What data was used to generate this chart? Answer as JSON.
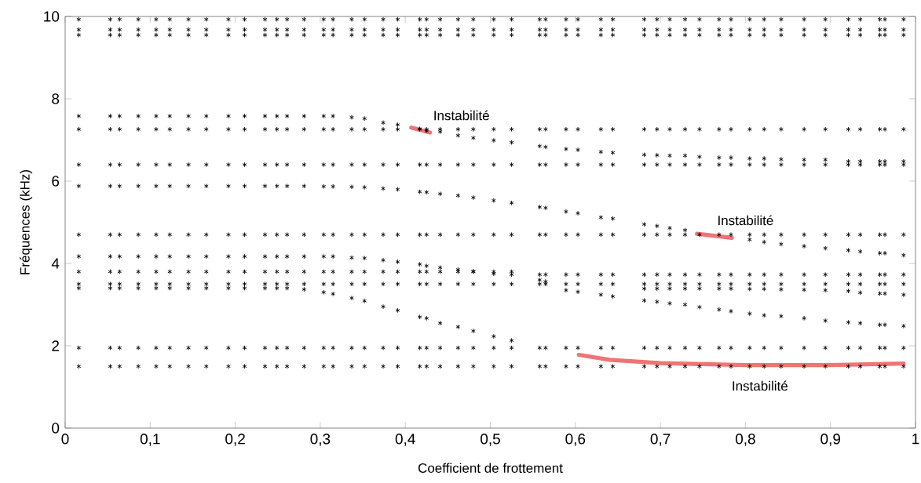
{
  "chart_data": {
    "type": "scatter",
    "xlabel": "Coefficient de frottement",
    "ylabel": "Fréquences (kHz)",
    "marker": "cross",
    "xlim": [
      0,
      1
    ],
    "ylim": [
      0,
      10
    ],
    "xticks": [
      0,
      {
        "value": 0.1,
        "label": "0,1"
      },
      {
        "value": 0.2,
        "label": "0,2"
      },
      {
        "value": 0.3,
        "label": "0,3"
      },
      {
        "value": 0.4,
        "label": "0,4"
      },
      {
        "value": 0.5,
        "label": "0,5"
      },
      {
        "value": 0.6,
        "label": "0,6"
      },
      {
        "value": 0.7,
        "label": "0,7"
      },
      {
        "value": 0.8,
        "label": "0,8"
      },
      {
        "value": 0.9,
        "label": "0,9"
      },
      1
    ],
    "yticks": [
      0,
      2,
      4,
      6,
      8,
      10
    ],
    "x": [
      0.016,
      0.053,
      0.064,
      0.086,
      0.107,
      0.123,
      0.145,
      0.166,
      0.192,
      0.211,
      0.235,
      0.249,
      0.261,
      0.281,
      0.304,
      0.315,
      0.337,
      0.352,
      0.374,
      0.391,
      0.417,
      0.425,
      0.441,
      0.462,
      0.48,
      0.504,
      0.525,
      0.558,
      0.565,
      0.589,
      0.603,
      0.63,
      0.644,
      0.681,
      0.696,
      0.711,
      0.729,
      0.746,
      0.769,
      0.783,
      0.805,
      0.822,
      0.842,
      0.869,
      0.894,
      0.921,
      0.935,
      0.958,
      0.964,
      0.986
    ],
    "series": [
      {
        "type": "line",
        "marker": "none",
        "color": "#f07474",
        "x": [
          0.407,
          0.429
        ],
        "values": [
          7.3,
          7.18
        ]
      },
      {
        "type": "line",
        "marker": "none",
        "color": "#f07474",
        "x": [
          0.743,
          0.765,
          0.784
        ],
        "values": [
          4.72,
          4.67,
          4.62
        ]
      },
      {
        "type": "line",
        "marker": "none",
        "color": "#f07474",
        "x": [
          0.604,
          0.64,
          0.7,
          0.8,
          0.9,
          0.986
        ],
        "values": [
          1.78,
          1.66,
          1.58,
          1.53,
          1.53,
          1.57
        ]
      },
      {
        "color": "#000000",
        "values": [
          1.5,
          1.5,
          1.5,
          1.5,
          1.5,
          1.5,
          1.5,
          1.5,
          1.5,
          1.5,
          1.5,
          1.5,
          1.5,
          1.5,
          1.5,
          1.5,
          1.5,
          1.5,
          1.5,
          1.5,
          1.5,
          1.5,
          1.5,
          1.5,
          1.5,
          1.5,
          1.5,
          1.5,
          1.5,
          1.5,
          1.5,
          1.5,
          1.5,
          1.5,
          1.5,
          1.5,
          1.5,
          1.5,
          1.5,
          1.5,
          1.5,
          1.5,
          1.5,
          1.5,
          1.5,
          1.5,
          1.5,
          1.5,
          1.5,
          1.5
        ]
      },
      {
        "color": "#000000",
        "values": [
          1.95,
          1.95,
          1.95,
          1.95,
          1.95,
          1.95,
          1.95,
          1.95,
          1.95,
          1.95,
          1.95,
          1.95,
          1.95,
          1.95,
          1.95,
          1.95,
          1.95,
          1.95,
          1.95,
          1.95,
          1.95,
          1.95,
          1.95,
          1.95,
          1.95,
          1.95,
          1.95,
          1.95,
          1.95,
          1.95,
          1.95,
          1.95,
          1.95,
          1.95,
          1.95,
          1.95,
          1.95,
          1.95,
          1.95,
          1.95,
          1.95,
          1.95,
          1.95,
          1.95,
          1.95,
          1.95,
          1.95,
          1.95,
          1.95,
          1.95
        ]
      },
      {
        "color": "#000000",
        "values": [
          3.5,
          3.5,
          3.5,
          3.5,
          3.5,
          3.5,
          3.5,
          3.5,
          3.5,
          3.5,
          3.5,
          3.5,
          3.5,
          3.5,
          3.5,
          3.5,
          3.5,
          3.5,
          3.5,
          3.5,
          3.5,
          3.5,
          3.5,
          3.5,
          3.5,
          3.5,
          3.5,
          3.5,
          3.5,
          3.5,
          3.5,
          3.5,
          3.5,
          3.5,
          3.5,
          3.5,
          3.5,
          3.5,
          3.5,
          3.5,
          3.5,
          3.5,
          3.5,
          3.5,
          3.5,
          3.5,
          3.5,
          3.5,
          3.5,
          3.5
        ]
      },
      {
        "color": "#000000",
        "values": [
          3.8,
          3.8,
          3.8,
          3.8,
          3.8,
          3.8,
          3.8,
          3.8,
          3.8,
          3.8,
          3.8,
          3.8,
          3.8,
          3.8,
          3.8,
          3.8,
          3.8,
          3.8,
          3.8,
          3.8,
          3.8,
          3.8,
          3.8,
          3.8,
          3.8,
          3.8,
          3.8,
          3.73,
          3.73,
          3.73,
          3.73,
          3.73,
          3.73,
          3.73,
          3.73,
          3.73,
          3.73,
          3.73,
          3.73,
          3.73,
          3.73,
          3.73,
          3.73,
          3.73,
          3.73,
          3.73,
          3.73,
          3.73,
          3.73,
          3.73
        ]
      },
      {
        "color": "#000000",
        "values": [
          3.4,
          3.4,
          3.4,
          3.4,
          3.4,
          3.4,
          3.4,
          3.4,
          3.4,
          3.4,
          3.4,
          3.4,
          3.4,
          3.37,
          3.3,
          3.26,
          3.16,
          3.09,
          2.95,
          2.86,
          2.7,
          2.67,
          2.55,
          2.46,
          2.36,
          2.23,
          2.13,
          null,
          null,
          null,
          null,
          null,
          null,
          null,
          null,
          null,
          null,
          null,
          null,
          null,
          null,
          null,
          null,
          null,
          null,
          null,
          null,
          null,
          null,
          null
        ]
      },
      {
        "color": "#000000",
        "values": [
          null,
          null,
          null,
          null,
          null,
          null,
          null,
          null,
          null,
          null,
          null,
          null,
          null,
          null,
          null,
          null,
          null,
          null,
          null,
          null,
          null,
          null,
          null,
          null,
          null,
          null,
          null,
          null,
          null,
          null,
          null,
          null,
          null,
          3.39,
          3.39,
          3.39,
          3.39,
          3.39,
          3.39,
          3.39,
          3.38,
          3.38,
          3.37,
          3.36,
          3.35,
          3.33,
          3.29,
          3.27,
          3.27,
          3.24
        ]
      },
      {
        "color": "#000000",
        "values": [
          4.17,
          4.17,
          4.17,
          4.17,
          4.17,
          4.17,
          4.17,
          4.17,
          4.17,
          4.17,
          4.17,
          4.17,
          4.17,
          4.17,
          4.17,
          4.17,
          4.14,
          4.13,
          4.08,
          4.04,
          3.98,
          3.94,
          3.9,
          3.85,
          3.81,
          3.75,
          3.73,
          3.6,
          3.56,
          3.35,
          3.31,
          3.24,
          3.2,
          3.1,
          3.07,
          3.03,
          3.0,
          2.94,
          2.88,
          2.84,
          2.78,
          2.74,
          2.72,
          2.67,
          2.61,
          2.57,
          2.55,
          2.51,
          2.51,
          2.48
        ]
      },
      {
        "color": "#000000",
        "values": [
          4.7,
          4.7,
          4.7,
          4.7,
          4.7,
          4.7,
          4.7,
          4.7,
          4.7,
          4.7,
          4.7,
          4.7,
          4.7,
          4.7,
          4.7,
          4.7,
          4.7,
          4.7,
          4.7,
          4.7,
          4.7,
          4.7,
          4.7,
          4.7,
          4.7,
          4.7,
          4.7,
          4.7,
          4.7,
          4.7,
          4.7,
          4.7,
          4.7,
          4.7,
          4.7,
          4.7,
          4.7,
          4.7,
          4.7,
          4.7,
          4.7,
          4.7,
          4.7,
          4.7,
          4.7,
          4.7,
          4.7,
          4.7,
          4.7,
          4.7
        ]
      },
      {
        "color": "#000000",
        "values": [
          null,
          null,
          null,
          null,
          null,
          null,
          null,
          null,
          null,
          null,
          null,
          null,
          null,
          null,
          null,
          null,
          null,
          null,
          null,
          null,
          null,
          null,
          null,
          null,
          null,
          null,
          null,
          null,
          null,
          null,
          null,
          null,
          null,
          null,
          null,
          null,
          null,
          null,
          null,
          null,
          4.58,
          4.52,
          4.47,
          4.42,
          4.37,
          4.32,
          4.29,
          4.25,
          4.25,
          4.2
        ]
      },
      {
        "color": "#000000",
        "values": [
          5.88,
          5.88,
          5.88,
          5.88,
          5.88,
          5.88,
          5.88,
          5.88,
          5.88,
          5.88,
          5.88,
          5.88,
          5.88,
          5.88,
          5.87,
          5.87,
          5.86,
          5.85,
          5.82,
          5.8,
          5.74,
          5.73,
          5.69,
          5.65,
          5.6,
          5.53,
          5.47,
          5.37,
          5.35,
          5.26,
          5.22,
          5.12,
          5.09,
          4.95,
          4.91,
          4.86,
          4.81,
          null,
          null,
          null,
          null,
          null,
          null,
          null,
          null,
          null,
          null,
          null,
          null,
          null
        ]
      },
      {
        "color": "#000000",
        "values": [
          6.4,
          6.4,
          6.4,
          6.4,
          6.4,
          6.4,
          6.4,
          6.4,
          6.4,
          6.4,
          6.4,
          6.4,
          6.4,
          6.4,
          6.4,
          6.4,
          6.4,
          6.4,
          6.4,
          6.4,
          6.4,
          6.4,
          6.4,
          6.4,
          6.4,
          6.4,
          6.4,
          6.4,
          6.4,
          6.4,
          6.4,
          6.4,
          6.4,
          6.4,
          6.4,
          6.4,
          6.4,
          6.4,
          6.4,
          6.4,
          6.4,
          6.4,
          6.4,
          6.4,
          6.4,
          6.4,
          6.4,
          6.4,
          6.4,
          6.4
        ]
      },
      {
        "color": "#000000",
        "values": [
          7.26,
          7.26,
          7.26,
          7.26,
          7.26,
          7.26,
          7.26,
          7.26,
          7.26,
          7.26,
          7.26,
          7.26,
          7.26,
          7.26,
          7.26,
          7.26,
          7.26,
          7.26,
          7.26,
          7.26,
          7.26,
          7.26,
          7.26,
          7.26,
          7.26,
          7.26,
          7.26,
          7.26,
          7.26,
          7.26,
          7.26,
          7.26,
          7.26,
          7.26,
          7.26,
          7.26,
          7.26,
          7.26,
          7.26,
          7.26,
          7.26,
          7.26,
          7.26,
          7.26,
          7.26,
          7.26,
          7.26,
          7.26,
          7.26,
          7.26
        ]
      },
      {
        "color": "#000000",
        "values": [
          7.58,
          7.58,
          7.58,
          7.58,
          7.58,
          7.58,
          7.58,
          7.58,
          7.58,
          7.58,
          7.58,
          7.58,
          7.58,
          7.58,
          7.58,
          7.58,
          7.55,
          7.52,
          7.42,
          7.37,
          7.27,
          7.22,
          7.2,
          7.11,
          7.05,
          6.99,
          6.94,
          6.85,
          6.83,
          6.78,
          6.76,
          6.71,
          6.69,
          6.64,
          6.63,
          6.62,
          6.62,
          6.59,
          6.57,
          6.57,
          6.55,
          6.55,
          6.53,
          6.52,
          6.52,
          6.48,
          6.48,
          6.48,
          6.48,
          6.48
        ]
      },
      {
        "color": "#000000",
        "values": [
          9.55,
          9.55,
          9.55,
          9.55,
          9.55,
          9.55,
          9.55,
          9.55,
          9.55,
          9.55,
          9.55,
          9.55,
          9.55,
          9.55,
          9.55,
          9.55,
          9.55,
          9.55,
          9.55,
          9.55,
          9.55,
          9.55,
          9.55,
          9.55,
          9.55,
          9.55,
          9.55,
          9.55,
          9.55,
          9.55,
          9.55,
          9.55,
          9.55,
          9.55,
          9.55,
          9.55,
          9.55,
          9.55,
          9.55,
          9.55,
          9.55,
          9.55,
          9.55,
          9.55,
          9.55,
          9.55,
          9.55,
          9.55,
          9.55,
          9.55
        ]
      },
      {
        "color": "#000000",
        "values": [
          9.68,
          9.68,
          9.68,
          9.68,
          9.68,
          9.68,
          9.68,
          9.68,
          9.68,
          9.68,
          9.68,
          9.68,
          9.68,
          9.68,
          9.68,
          9.68,
          9.68,
          9.68,
          9.68,
          9.68,
          9.68,
          9.68,
          9.68,
          9.68,
          9.68,
          9.68,
          9.68,
          9.68,
          9.68,
          9.68,
          9.68,
          9.68,
          9.68,
          9.68,
          9.68,
          9.68,
          9.68,
          9.68,
          9.68,
          9.68,
          9.68,
          9.68,
          9.68,
          9.68,
          9.68,
          9.68,
          9.68,
          9.68,
          9.68,
          9.68
        ]
      },
      {
        "color": "#000000",
        "values": [
          9.93,
          9.93,
          9.93,
          9.93,
          9.93,
          9.93,
          9.93,
          9.93,
          9.93,
          9.93,
          9.93,
          9.93,
          9.93,
          9.93,
          9.93,
          9.93,
          9.93,
          9.93,
          9.93,
          9.93,
          9.93,
          9.93,
          9.93,
          9.93,
          9.93,
          9.93,
          9.93,
          9.93,
          9.93,
          9.93,
          9.93,
          9.93,
          9.93,
          9.93,
          9.93,
          9.93,
          9.93,
          9.93,
          9.93,
          9.93,
          9.93,
          9.93,
          9.93,
          9.93,
          9.93,
          9.93,
          9.93,
          9.93,
          9.93,
          9.93
        ]
      }
    ],
    "annotations": [
      "Instabilité",
      "Instabilité",
      "Instabilité"
    ]
  }
}
